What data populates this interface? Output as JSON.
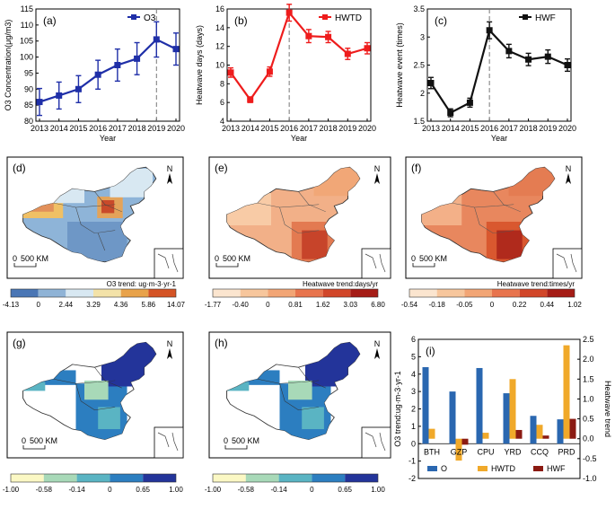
{
  "chart_data": [
    {
      "type": "line",
      "panel_label": "(a)",
      "legend": "O3",
      "xlabel": "Year",
      "ylabel": "O3 Concentration(μg/m3)",
      "x": [
        "2013",
        "2014",
        "2015",
        "2016",
        "2017",
        "2018",
        "2019",
        "2020"
      ],
      "values": [
        86,
        88,
        90,
        94.5,
        97.5,
        99.5,
        105.5,
        102.5
      ],
      "err": [
        4.2,
        4.2,
        4.2,
        4.5,
        5,
        5,
        5.5,
        5
      ],
      "ylim": [
        80,
        115
      ],
      "yticks": [
        80,
        85,
        90,
        95,
        100,
        105,
        110,
        115
      ],
      "dashed_year": "2019",
      "color": "#1f2fa8"
    },
    {
      "type": "line",
      "panel_label": "(b)",
      "legend": "HWTD",
      "xlabel": "Year",
      "ylabel": "Heatwave days (days)",
      "x": [
        "2013",
        "2014",
        "2015",
        "2016",
        "2017",
        "2018",
        "2019",
        "2020"
      ],
      "values": [
        9.2,
        6.3,
        9.3,
        15.6,
        13.1,
        13.0,
        11.2,
        11.8
      ],
      "err": [
        0.5,
        0.3,
        0.5,
        0.9,
        0.7,
        0.6,
        0.6,
        0.6
      ],
      "ylim": [
        4,
        16
      ],
      "yticks": [
        4,
        6,
        8,
        10,
        12,
        14,
        16
      ],
      "dashed_year": "2016",
      "color": "#ee1c1c"
    },
    {
      "type": "line",
      "panel_label": "(c)",
      "legend": "HWF",
      "xlabel": "Year",
      "ylabel": "Heatwave event (times)",
      "x": [
        "2013",
        "2014",
        "2015",
        "2016",
        "2017",
        "2018",
        "2019",
        "2020"
      ],
      "values": [
        2.18,
        1.65,
        1.83,
        3.12,
        2.75,
        2.6,
        2.65,
        2.5
      ],
      "err": [
        0.1,
        0.07,
        0.08,
        0.15,
        0.12,
        0.11,
        0.12,
        0.11
      ],
      "ylim": [
        1.5,
        3.5
      ],
      "yticks": [
        1.5,
        2.0,
        2.5,
        3.0,
        3.5
      ],
      "dashed_year": "2016",
      "color": "#111111"
    },
    {
      "type": "bar",
      "panel_label": "(i)",
      "categories": [
        "BTH",
        "GZP",
        "CPU",
        "YRD",
        "CCQ",
        "PRD"
      ],
      "ylabel": "O3 trend:ug·m-3·yr-1",
      "y2label": "Heatwave trend",
      "ylim": [
        -2,
        6
      ],
      "yticks": [
        -2,
        -1,
        0,
        1,
        2,
        3,
        4,
        5,
        6
      ],
      "y2lim": [
        -1.0,
        2.5
      ],
      "y2ticks": [
        "-1.0",
        "-0.5",
        "0.0",
        "0.5",
        "1.0",
        "1.5",
        "2.0",
        "2.5"
      ],
      "series": [
        {
          "name": "O",
          "axis": "left",
          "color": "#2a67b0",
          "values": [
            4.4,
            3.0,
            4.35,
            2.9,
            1.6,
            1.4
          ]
        },
        {
          "name": "HWTD",
          "axis": "right",
          "color": "#f0a92a",
          "values": [
            0.25,
            -0.55,
            0.15,
            1.5,
            0.35,
            2.35
          ]
        },
        {
          "name": "HWF",
          "axis": "right",
          "color": "#8b1a12",
          "values": [
            0.0,
            -0.15,
            0.0,
            0.22,
            0.08,
            0.5
          ]
        }
      ]
    }
  ],
  "maps": {
    "d": {
      "label": "(d)",
      "scale": "500 KM",
      "north": "N"
    },
    "e": {
      "label": "(e)",
      "scale": "500 KM",
      "north": "N"
    },
    "f": {
      "label": "(f)",
      "scale": "500 KM",
      "north": "N"
    },
    "g": {
      "label": "(g)",
      "scale": "500 KM",
      "north": "N"
    },
    "h": {
      "label": "(h)",
      "scale": "500 KM",
      "north": "N"
    }
  },
  "colorbars": {
    "d": {
      "title": "O3 trend: ug·m-3·yr-1",
      "ticks": [
        "-4.13",
        "0",
        "2.44",
        "3.29",
        "4.36",
        "5.86",
        "14.07"
      ],
      "colors": [
        "#4a76b5",
        "#8fb3d6",
        "#d8e8f2",
        "#f3e2a8",
        "#e8a24a",
        "#d45325"
      ]
    },
    "e": {
      "title": "Heatwave trend:days/yr",
      "ticks": [
        "-1.77",
        "-0.40",
        "0",
        "0.81",
        "1.62",
        "3.03",
        "6.80"
      ],
      "colors": [
        "#fbe5cf",
        "#f7c69c",
        "#f2a575",
        "#e8744d",
        "#d14629",
        "#a51c16"
      ]
    },
    "f": {
      "title": "Heatwave trend:times/yr",
      "ticks": [
        "-0.54",
        "-0.18",
        "-0.05",
        "0",
        "0.22",
        "0.44",
        "1.02"
      ],
      "colors": [
        "#fbe5cf",
        "#f7c69c",
        "#f2a575",
        "#e8744d",
        "#d14629",
        "#a51c16"
      ]
    },
    "g": {
      "title": "",
      "ticks": [
        "-1.00",
        "-0.58",
        "-0.14",
        "0",
        "0.65",
        "1.00"
      ],
      "colors": [
        "#fbf8c4",
        "#a8d9b8",
        "#5ab4c3",
        "#2c7ec0",
        "#23349a"
      ]
    },
    "h": {
      "title": "",
      "ticks": [
        "-1.00",
        "-0.58",
        "-0.14",
        "0",
        "0.65",
        "1.00"
      ],
      "colors": [
        "#fbf8c4",
        "#a8d9b8",
        "#5ab4c3",
        "#2c7ec0",
        "#23349a"
      ]
    }
  }
}
